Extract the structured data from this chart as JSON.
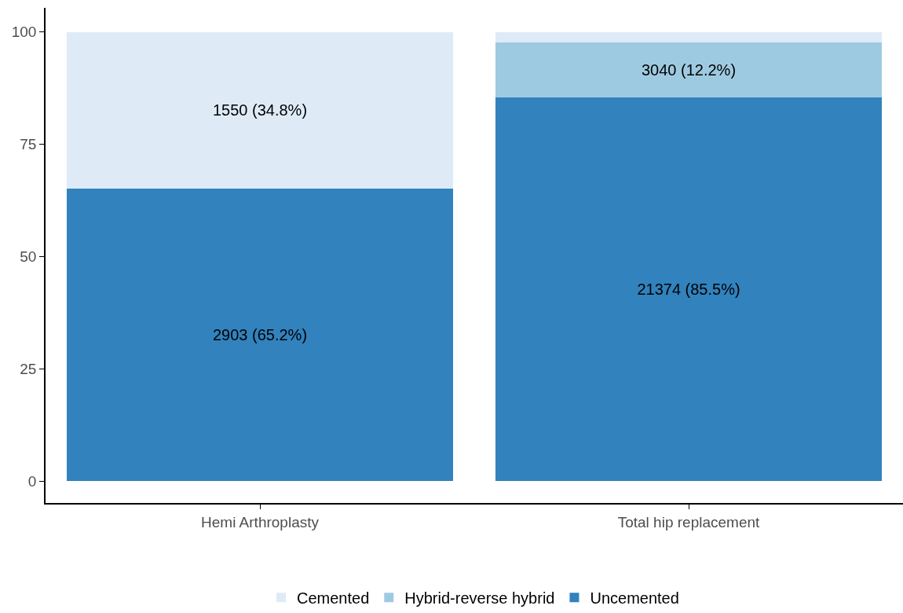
{
  "chart_data": {
    "type": "bar",
    "stacked": true,
    "categories": [
      "Hemi Arthroplasty",
      "Total hip replacement"
    ],
    "series": [
      {
        "name": "Uncemented",
        "color": "#3182bd",
        "values": [
          65.2,
          85.5
        ],
        "value_labels": [
          "2903 (65.2%)",
          "21374 (85.5%)"
        ]
      },
      {
        "name": "Hybrid-reverse hybrid",
        "color": "#9ecae1",
        "values": [
          0,
          12.2
        ],
        "value_labels": [
          null,
          "3040 (12.2%)"
        ]
      },
      {
        "name": "Cemented",
        "color": "#deebf7",
        "values": [
          34.8,
          2.3
        ],
        "value_labels": [
          "1550 (34.8%)",
          null
        ]
      }
    ],
    "ylim": [
      -4.9,
      105.4
    ],
    "yticks": [
      0,
      25,
      50,
      75,
      100
    ],
    "legend": "bottom"
  }
}
